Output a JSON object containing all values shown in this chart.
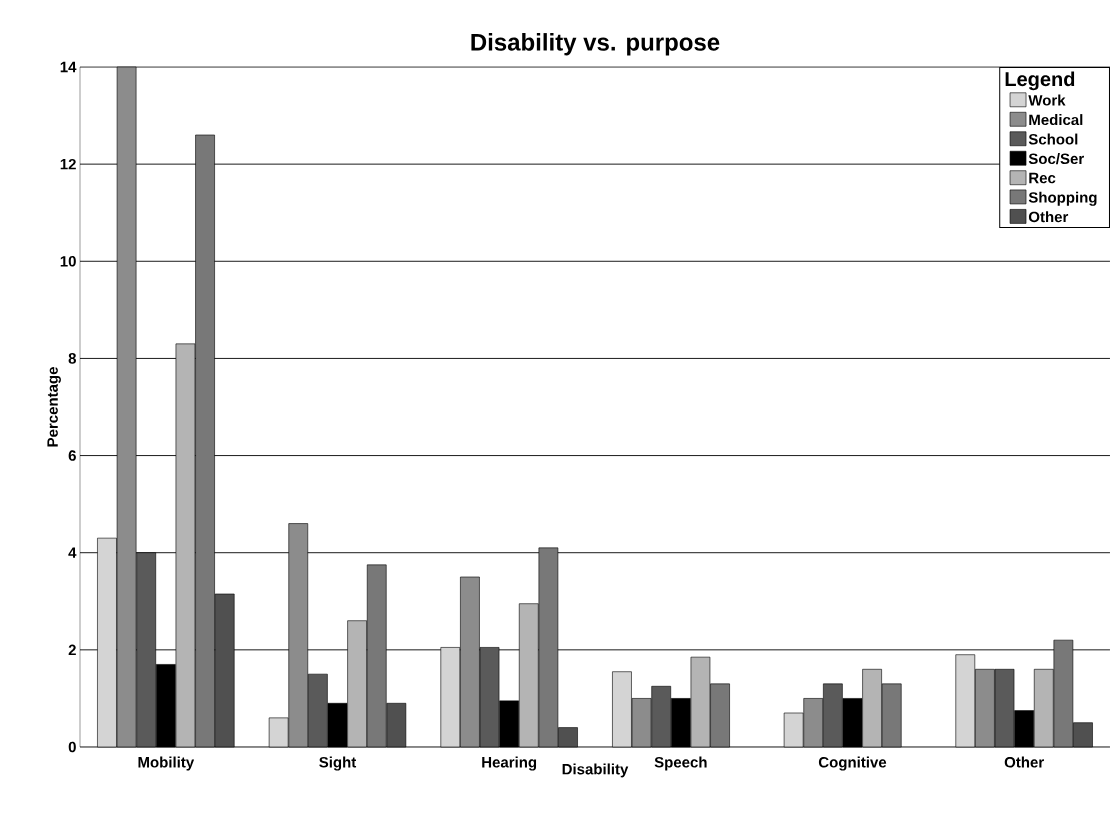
{
  "chart_data": {
    "type": "bar",
    "title": "Disability vs. purpose",
    "xlabel": "Disability",
    "ylabel": "Percentage",
    "legend_title": "Legend",
    "categories": [
      "Mobility",
      "Sight",
      "Hearing",
      "Speech",
      "Cognitive",
      "Other"
    ],
    "series": [
      {
        "name": "Work",
        "color": "#d4d4d4",
        "values": [
          4.3,
          0.6,
          2.05,
          1.55,
          0.7,
          1.9
        ]
      },
      {
        "name": "Medical",
        "color": "#8c8c8c",
        "values": [
          14.0,
          4.6,
          3.5,
          1.0,
          1.0,
          1.6
        ]
      },
      {
        "name": "School",
        "color": "#5a5a5a",
        "values": [
          4.0,
          1.5,
          2.05,
          1.25,
          1.3,
          1.6
        ]
      },
      {
        "name": "Soc/Ser",
        "color": "#000000",
        "values": [
          1.7,
          0.9,
          0.95,
          1.0,
          1.0,
          0.75
        ]
      },
      {
        "name": "Rec",
        "color": "#b4b4b4",
        "values": [
          8.3,
          2.6,
          2.95,
          1.85,
          1.6,
          1.6
        ]
      },
      {
        "name": "Shopping",
        "color": "#787878",
        "values": [
          12.6,
          3.75,
          4.1,
          1.3,
          1.3,
          2.2
        ]
      },
      {
        "name": "Other",
        "color": "#505050",
        "values": [
          3.15,
          0.9,
          0.4,
          null,
          null,
          0.5
        ]
      }
    ],
    "ylim": [
      0,
      14
    ],
    "yticks": [
      0,
      2,
      4,
      6,
      8,
      10,
      12,
      14
    ],
    "grid": "y",
    "legend": "top right"
  }
}
